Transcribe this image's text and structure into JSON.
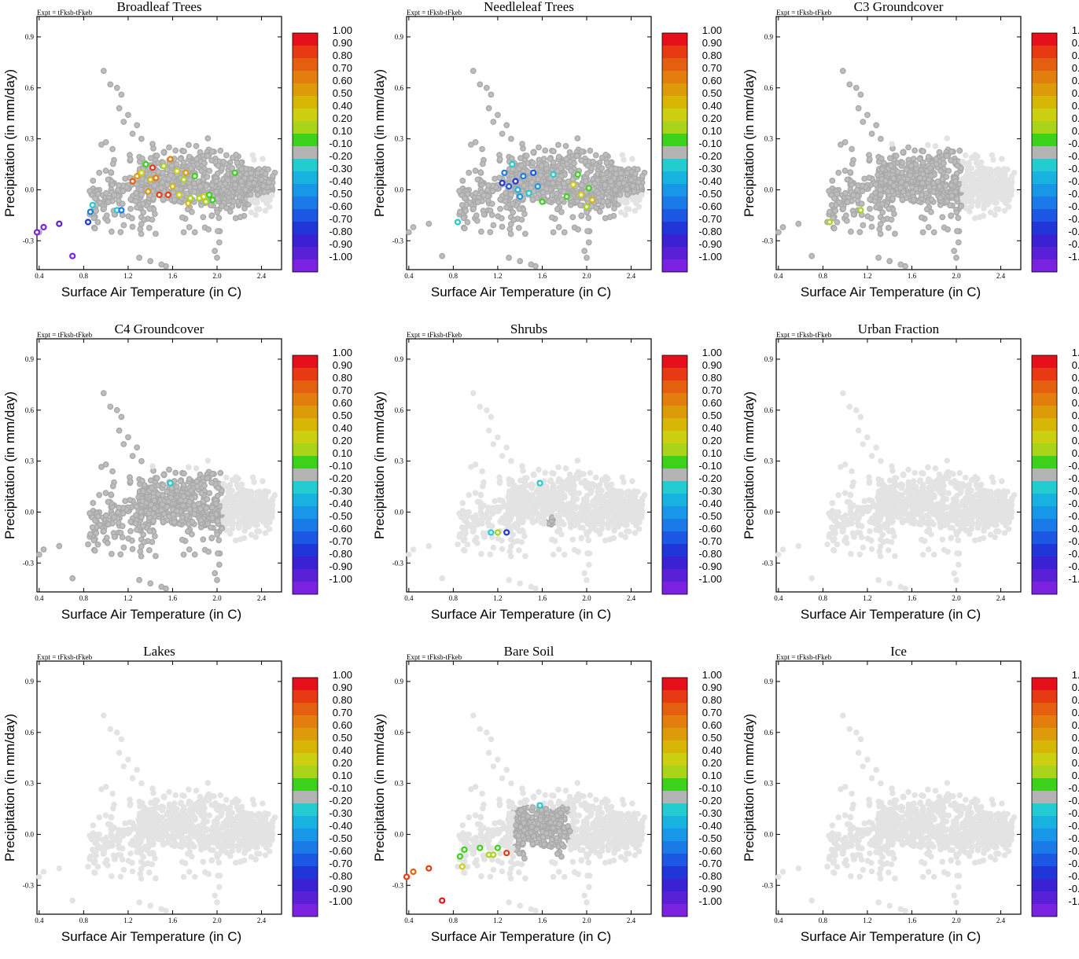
{
  "figure": {
    "expt_label": "Expt = tFksb-tFkeb",
    "xlabel": "Surface Air Temperature (in C)",
    "ylabel": "Precipitation (in mm/day)",
    "xlim": [
      0.38,
      2.58
    ],
    "ylim": [
      -0.47,
      1.02
    ],
    "x_ticks": [
      "0.4",
      "0.8",
      "1.2",
      "1.6",
      "2.0",
      "2.4"
    ],
    "y_ticks": [
      "-0.3",
      "0.0",
      "0.3",
      "0.6",
      "0.9"
    ],
    "colorbar": {
      "labels": [
        "1.00",
        "0.90",
        "0.80",
        "0.70",
        "0.60",
        "0.50",
        "0.40",
        "0.20",
        "0.10",
        "-0.10",
        "-0.20",
        "-0.30",
        "-0.40",
        "-0.50",
        "-0.60",
        "-0.70",
        "-0.80",
        "-0.90",
        "-1.00"
      ],
      "colors": [
        "#e5101c",
        "#e83a12",
        "#e55f10",
        "#e27d0e",
        "#dd9b0a",
        "#d8b606",
        "#ccd010",
        "#a9d41a",
        "#3cd11a",
        "#b4b4b4",
        "#22ccd0",
        "#18b2e0",
        "#1896e8",
        "#1a7ae8",
        "#1c58e4",
        "#2036d8",
        "#3a22d4",
        "#5a20d8",
        "#7a22e0"
      ]
    },
    "point_colors": {
      "background": "#e3e3e3",
      "active": "#a9a9a9",
      "v-1.0": "#7a22e0",
      "v-0.9": "#5a20d8",
      "v-0.8": "#3a22d4",
      "v-0.7": "#2036d8",
      "v-0.6": "#1c58e4",
      "v-0.5": "#1a7ae8",
      "v-0.4": "#1896e8",
      "v-0.3": "#18b2e0",
      "v-0.2": "#22ccd0",
      "v0.1": "#3cd11a",
      "v0.2": "#a9d41a",
      "v0.4": "#ccd010",
      "v0.5": "#d8b606",
      "v0.6": "#dd9b0a",
      "v0.7": "#e27d0e",
      "v0.8": "#e55f10",
      "v0.9": "#e83a12",
      "v1.0": "#e5101c"
    }
  },
  "chart_data": [
    {
      "type": "scatter",
      "title": "Broadleaf Trees",
      "active_region": "central",
      "colored_points": [
        {
          "x": 0.38,
          "y": -0.25,
          "v": -1.0
        },
        {
          "x": 0.44,
          "y": -0.22,
          "v": -1.0
        },
        {
          "x": 0.58,
          "y": -0.2,
          "v": -0.9
        },
        {
          "x": 0.7,
          "y": -0.39,
          "v": -1.0
        },
        {
          "x": 0.84,
          "y": -0.19,
          "v": -0.7
        },
        {
          "x": 0.86,
          "y": -0.13,
          "v": -0.5
        },
        {
          "x": 0.88,
          "y": -0.09,
          "v": -0.2
        },
        {
          "x": 1.1,
          "y": -0.12,
          "v": -0.2
        },
        {
          "x": 1.14,
          "y": -0.12,
          "v": -0.5
        },
        {
          "x": 1.24,
          "y": 0.05,
          "v": 0.8
        },
        {
          "x": 1.28,
          "y": 0.08,
          "v": 0.6
        },
        {
          "x": 1.32,
          "y": 0.1,
          "v": 0.4
        },
        {
          "x": 1.36,
          "y": 0.15,
          "v": 0.1
        },
        {
          "x": 1.38,
          "y": -0.01,
          "v": 0.6
        },
        {
          "x": 1.4,
          "y": 0.06,
          "v": 0.5
        },
        {
          "x": 1.42,
          "y": 0.13,
          "v": 0.9
        },
        {
          "x": 1.45,
          "y": 0.07,
          "v": 0.7
        },
        {
          "x": 1.48,
          "y": -0.03,
          "v": 0.9
        },
        {
          "x": 1.52,
          "y": 0.14,
          "v": 0.2
        },
        {
          "x": 1.56,
          "y": -0.03,
          "v": 0.9
        },
        {
          "x": 1.58,
          "y": 0.18,
          "v": 0.7
        },
        {
          "x": 1.6,
          "y": 0.02,
          "v": 0.5
        },
        {
          "x": 1.64,
          "y": 0.11,
          "v": 0.4
        },
        {
          "x": 1.66,
          "y": -0.03,
          "v": 0.4
        },
        {
          "x": 1.7,
          "y": 0.06,
          "v": 0.2
        },
        {
          "x": 1.72,
          "y": 0.1,
          "v": 0.6
        },
        {
          "x": 1.74,
          "y": -0.08,
          "v": 0.5
        },
        {
          "x": 1.76,
          "y": -0.05,
          "v": 0.2
        },
        {
          "x": 1.8,
          "y": 0.08,
          "v": 0.1
        },
        {
          "x": 1.84,
          "y": -0.05,
          "v": 0.2
        },
        {
          "x": 1.88,
          "y": -0.04,
          "v": 0.4
        },
        {
          "x": 1.9,
          "y": -0.07,
          "v": 0.2
        },
        {
          "x": 1.93,
          "y": -0.03,
          "v": 0.1
        },
        {
          "x": 1.96,
          "y": -0.06,
          "v": 0.1
        },
        {
          "x": 2.16,
          "y": 0.1,
          "v": 0.1
        }
      ]
    },
    {
      "type": "scatter",
      "title": "Needleleaf Trees",
      "active_region": "central",
      "colored_points": [
        {
          "x": 0.84,
          "y": -0.19,
          "v": -0.2
        },
        {
          "x": 1.24,
          "y": 0.04,
          "v": -0.7
        },
        {
          "x": 1.26,
          "y": 0.1,
          "v": -0.5
        },
        {
          "x": 1.3,
          "y": 0.02,
          "v": -0.6
        },
        {
          "x": 1.33,
          "y": 0.15,
          "v": -0.2
        },
        {
          "x": 1.36,
          "y": 0.05,
          "v": -0.7
        },
        {
          "x": 1.38,
          "y": 0.0,
          "v": -0.3
        },
        {
          "x": 1.4,
          "y": -0.04,
          "v": -0.4
        },
        {
          "x": 1.43,
          "y": 0.08,
          "v": -0.5
        },
        {
          "x": 1.48,
          "y": -0.02,
          "v": -0.2
        },
        {
          "x": 1.52,
          "y": 0.1,
          "v": -0.6
        },
        {
          "x": 1.56,
          "y": 0.02,
          "v": -0.4
        },
        {
          "x": 1.6,
          "y": -0.07,
          "v": 0.1
        },
        {
          "x": 1.7,
          "y": 0.09,
          "v": -0.2
        },
        {
          "x": 1.82,
          "y": -0.04,
          "v": 0.1
        },
        {
          "x": 1.88,
          "y": 0.03,
          "v": 0.4
        },
        {
          "x": 1.92,
          "y": 0.09,
          "v": 0.1
        },
        {
          "x": 1.95,
          "y": -0.03,
          "v": 0.4
        },
        {
          "x": 2.0,
          "y": -0.1,
          "v": 0.2
        },
        {
          "x": 2.02,
          "y": 0.01,
          "v": 0.1
        },
        {
          "x": 2.05,
          "y": -0.06,
          "v": 0.5
        }
      ]
    },
    {
      "type": "scatter",
      "title": "C3 Groundcover",
      "active_region": "left",
      "colored_points": [
        {
          "x": 0.86,
          "y": -0.19,
          "v": 0.2
        },
        {
          "x": 1.14,
          "y": -0.12,
          "v": 0.2
        }
      ]
    },
    {
      "type": "scatter",
      "title": "C4 Groundcover",
      "active_region": "left",
      "colored_points": [
        {
          "x": 1.58,
          "y": 0.17,
          "v": -0.2
        }
      ]
    },
    {
      "type": "scatter",
      "title": "Shrubs",
      "active_region": "few",
      "colored_points": [
        {
          "x": 1.14,
          "y": -0.12,
          "v": -0.2
        },
        {
          "x": 1.2,
          "y": -0.12,
          "v": 0.2
        },
        {
          "x": 1.28,
          "y": -0.12,
          "v": -0.7
        },
        {
          "x": 1.58,
          "y": 0.17,
          "v": -0.2
        }
      ]
    },
    {
      "type": "scatter",
      "title": "Urban Fraction",
      "active_region": "none",
      "colored_points": []
    },
    {
      "type": "scatter",
      "title": "Lakes",
      "active_region": "none",
      "colored_points": []
    },
    {
      "type": "scatter",
      "title": "Bare Soil",
      "active_region": "mid",
      "colored_points": [
        {
          "x": 0.38,
          "y": -0.25,
          "v": 0.9
        },
        {
          "x": 0.44,
          "y": -0.22,
          "v": 0.8
        },
        {
          "x": 0.58,
          "y": -0.2,
          "v": 0.9
        },
        {
          "x": 0.7,
          "y": -0.39,
          "v": 1.0
        },
        {
          "x": 0.86,
          "y": -0.13,
          "v": 0.1
        },
        {
          "x": 0.88,
          "y": -0.19,
          "v": 0.4
        },
        {
          "x": 0.9,
          "y": -0.09,
          "v": 0.1
        },
        {
          "x": 1.04,
          "y": -0.08,
          "v": 0.1
        },
        {
          "x": 1.12,
          "y": -0.12,
          "v": 0.2
        },
        {
          "x": 1.16,
          "y": -0.12,
          "v": 0.2
        },
        {
          "x": 1.2,
          "y": -0.08,
          "v": 0.1
        },
        {
          "x": 1.28,
          "y": -0.11,
          "v": 0.9
        },
        {
          "x": 1.58,
          "y": 0.17,
          "v": -0.2
        }
      ]
    },
    {
      "type": "scatter",
      "title": "Ice",
      "active_region": "none",
      "colored_points": []
    }
  ]
}
